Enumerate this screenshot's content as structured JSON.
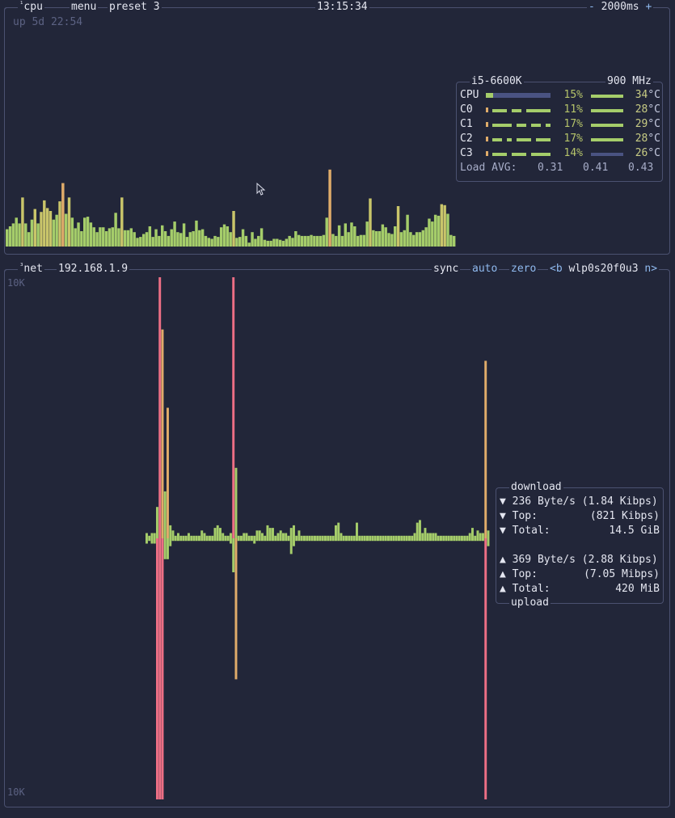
{
  "cpu": {
    "index": "¹",
    "title": "cpu",
    "menu_label": "menu",
    "preset_label": "preset 3",
    "clock": "13:15:34",
    "interval_minus": "-",
    "interval": "2000ms",
    "interval_plus": "+",
    "uptime": "up 5d 22:54",
    "history": [
      18,
      21,
      24,
      30,
      24,
      51,
      24,
      15,
      28,
      39,
      24,
      36,
      48,
      40,
      37,
      28,
      33,
      47,
      66,
      34,
      51,
      30,
      19,
      25,
      16,
      30,
      31,
      25,
      20,
      15,
      20,
      20,
      16,
      19,
      20,
      35,
      19,
      51,
      17,
      17,
      19,
      15,
      9,
      10,
      13,
      15,
      21,
      10,
      18,
      11,
      22,
      16,
      11,
      18,
      26,
      15,
      14,
      24,
      10,
      15,
      16,
      27,
      17,
      18,
      11,
      9,
      8,
      11,
      10,
      20,
      23,
      21,
      15,
      37,
      9,
      10,
      18,
      11,
      4,
      15,
      8,
      11,
      19,
      7,
      6,
      6,
      8,
      8,
      7,
      6,
      8,
      11,
      9,
      16,
      12,
      11,
      11,
      11,
      12,
      11,
      11,
      11,
      12,
      30,
      80,
      13,
      11,
      22,
      11,
      24,
      15,
      25,
      21,
      11,
      12,
      12,
      26,
      50,
      17,
      16,
      16,
      23,
      20,
      14,
      13,
      21,
      42,
      15,
      17,
      33,
      15,
      12,
      15,
      15,
      17,
      20,
      29,
      26,
      33,
      32,
      44,
      43,
      34,
      12,
      11
    ]
  },
  "cpu_info": {
    "model": "i5-6600K",
    "freq": "900 MHz",
    "rows": [
      {
        "label": "CPU",
        "pct": "15%",
        "value": 15,
        "temp": "34",
        "temp_value": 34
      },
      {
        "label": "C0",
        "pct": "11%",
        "value": 11,
        "temp": "28",
        "temp_value": 28
      },
      {
        "label": "C1",
        "pct": "17%",
        "value": 17,
        "temp": "29",
        "temp_value": 29
      },
      {
        "label": "C2",
        "pct": "17%",
        "value": 17,
        "temp": "28",
        "temp_value": 28
      },
      {
        "label": "C3",
        "pct": "14%",
        "value": 14,
        "temp": "26",
        "temp_value": 26
      }
    ],
    "temp_unit": "°C",
    "load_label": "Load AVG:",
    "load": [
      "0.31",
      "0.41",
      "0.43"
    ]
  },
  "net": {
    "index": "³",
    "title": "net",
    "ip": "192.168.1.9",
    "sync": "sync",
    "auto": "auto",
    "zero": "zero",
    "prev_iface": "<b",
    "iface": "wlp0s20f0u3",
    "next_iface": "n>",
    "scale_top": "10K",
    "scale_bottom": "10K",
    "download_title": "download",
    "upload_title": "upload",
    "download": {
      "rate": "236 Byte/s (1.84 Kibps)",
      "top_label": "Top:",
      "top": "(821 Kibps)",
      "total_label": "Total:",
      "total": "14.5 GiB"
    },
    "upload": {
      "rate": "369 Byte/s (2.88 Kibps)",
      "top_label": "Top:",
      "top": "(7.05 Mibps)",
      "total_label": "Total:",
      "total": "420 MiB"
    },
    "down_arrow": "▼",
    "up_arrow": "▲",
    "download_history": [
      2,
      1,
      2,
      2,
      12,
      100,
      80,
      18,
      50,
      5,
      3,
      1,
      2,
      1,
      1,
      1,
      2,
      1,
      1,
      1,
      1,
      3,
      2,
      1,
      1,
      1,
      4,
      5,
      4,
      2,
      1,
      1,
      2,
      100,
      27,
      1,
      1,
      2,
      2,
      1,
      1,
      1,
      3,
      3,
      2,
      1,
      5,
      4,
      4,
      1,
      2,
      3,
      2,
      2,
      1,
      4,
      5,
      1,
      3,
      1,
      1,
      1,
      1,
      1,
      1,
      1,
      1,
      1,
      1,
      1,
      1,
      1,
      5,
      6,
      2,
      1,
      1,
      1,
      1,
      1,
      6,
      1,
      1,
      1,
      1,
      1,
      1,
      1,
      1,
      1,
      1,
      1,
      1,
      1,
      1,
      1,
      1,
      1,
      1,
      1,
      1,
      1,
      2,
      6,
      7,
      2,
      4,
      2,
      2,
      2,
      2,
      1,
      1,
      1,
      1,
      1,
      1,
      1,
      1,
      1,
      1,
      1,
      1,
      2,
      4,
      1,
      3,
      2,
      2,
      68,
      3
    ],
    "upload_history": [
      2,
      1,
      2,
      2,
      100,
      100,
      100,
      8,
      8,
      3,
      1,
      1,
      1,
      1,
      1,
      1,
      1,
      1,
      1,
      1,
      1,
      1,
      1,
      1,
      1,
      1,
      1,
      1,
      1,
      1,
      1,
      1,
      2,
      13,
      54,
      1,
      1,
      1,
      1,
      1,
      1,
      2,
      1,
      1,
      1,
      1,
      1,
      1,
      1,
      1,
      1,
      1,
      1,
      1,
      1,
      6,
      3,
      1,
      1,
      1,
      1,
      1,
      1,
      1,
      1,
      1,
      1,
      1,
      1,
      1,
      1,
      1,
      1,
      1,
      1,
      1,
      1,
      1,
      1,
      1,
      1,
      1,
      1,
      1,
      1,
      1,
      1,
      1,
      1,
      1,
      1,
      1,
      1,
      1,
      1,
      1,
      1,
      1,
      1,
      1,
      1,
      1,
      1,
      1,
      1,
      1,
      1,
      1,
      1,
      1,
      1,
      1,
      1,
      1,
      1,
      1,
      1,
      1,
      1,
      1,
      1,
      1,
      1,
      1,
      1,
      1,
      1,
      1,
      1,
      100,
      3
    ]
  },
  "colors": {
    "bg": "#222639",
    "border": "#4b5170",
    "green": "#a5cd6a",
    "orange": "#e0ac6a",
    "pink": "#ed6f85",
    "blue": "#8fb9ee",
    "muted": "#5c6283"
  }
}
